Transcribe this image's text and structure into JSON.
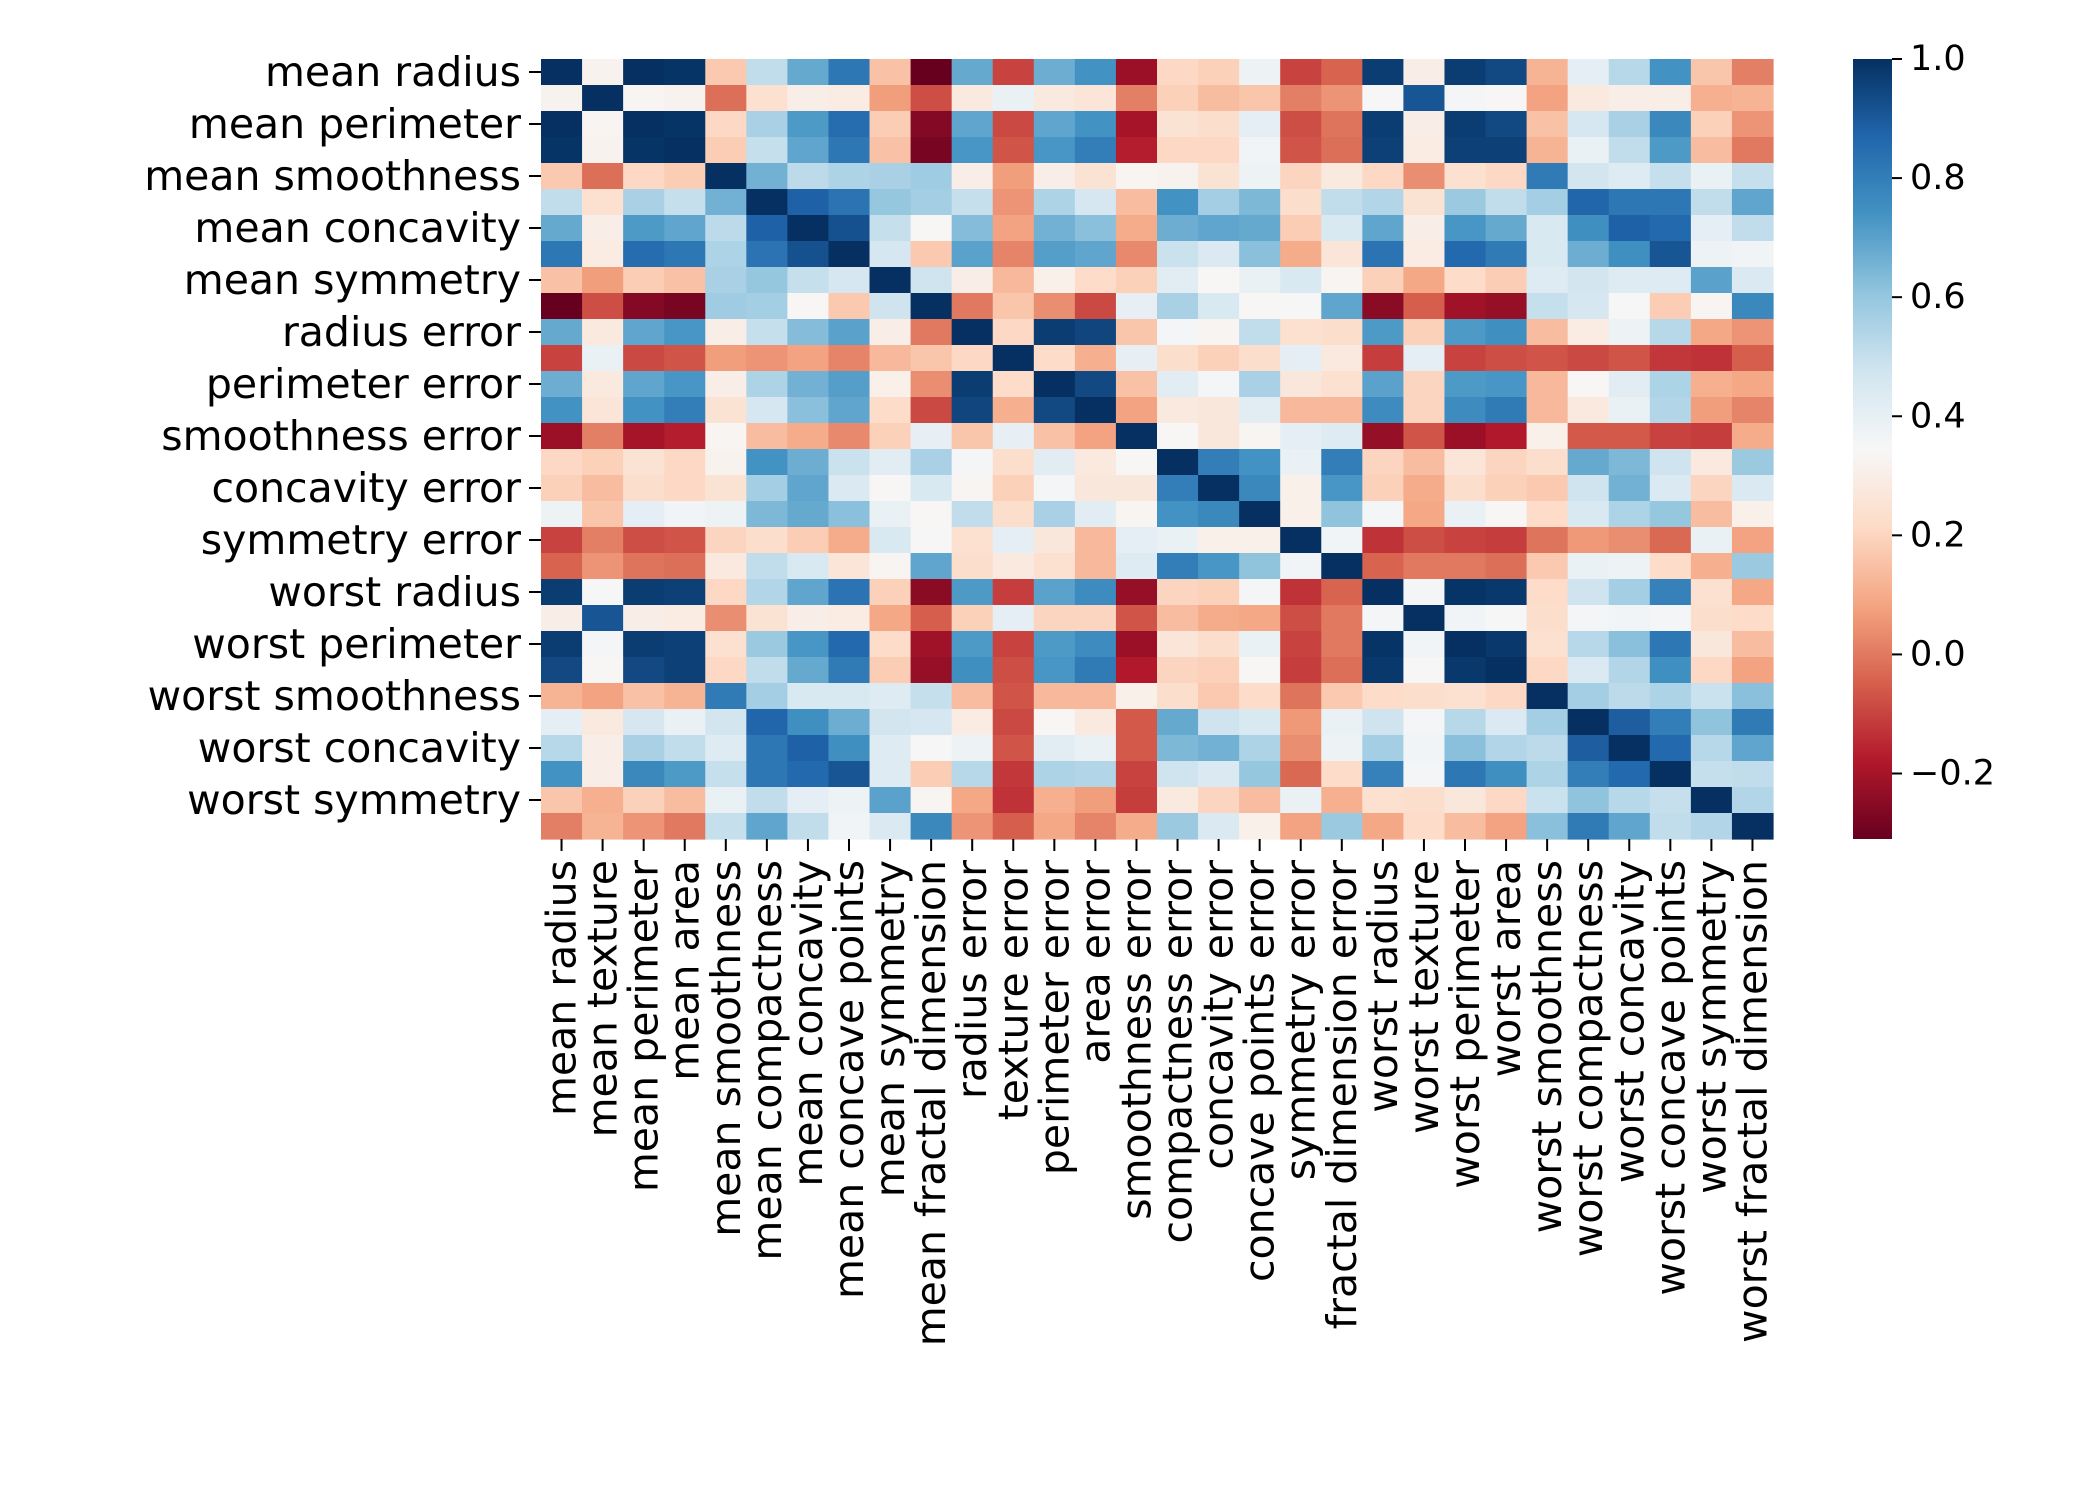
{
  "chart_data": {
    "type": "heatmap",
    "title": "",
    "xlabel": "",
    "ylabel": "",
    "labels": [
      "mean radius",
      "mean texture",
      "mean perimeter",
      "mean area",
      "mean smoothness",
      "mean compactness",
      "mean concavity",
      "mean concave points",
      "mean symmetry",
      "mean fractal dimension",
      "radius error",
      "texture error",
      "perimeter error",
      "area error",
      "smoothness error",
      "compactness error",
      "concavity error",
      "concave points error",
      "symmetry error",
      "fractal dimension error",
      "worst radius",
      "worst texture",
      "worst perimeter",
      "worst area",
      "worst smoothness",
      "worst compactness",
      "worst concavity",
      "worst concave points",
      "worst symmetry",
      "worst fractal dimension"
    ],
    "y_tick_labels_shown": [
      "mean radius",
      "mean perimeter",
      "mean smoothness",
      "mean concavity",
      "mean symmetry",
      "radius error",
      "perimeter error",
      "smoothness error",
      "concavity error",
      "symmetry error",
      "worst radius",
      "worst perimeter",
      "worst smoothness",
      "worst concavity",
      "worst symmetry"
    ],
    "colormap": "RdBu",
    "vmin": -0.31,
    "vmax": 1.0,
    "colorbar_ticks": [
      1.0,
      0.8,
      0.6,
      0.4,
      0.2,
      0.0,
      -0.2
    ],
    "colorbar_tick_labels": [
      "1.0",
      "0.8",
      "0.6",
      "0.4",
      "0.2",
      "0.0",
      "−0.2"
    ],
    "matrix": [
      [
        1.0,
        0.32,
        1.0,
        0.99,
        0.17,
        0.51,
        0.68,
        0.82,
        0.15,
        -0.31,
        0.68,
        -0.1,
        0.67,
        0.74,
        -0.22,
        0.21,
        0.19,
        0.38,
        -0.1,
        -0.04,
        0.97,
        0.3,
        0.97,
        0.94,
        0.12,
        0.41,
        0.53,
        0.74,
        0.16,
        0.01
      ],
      [
        0.32,
        1.0,
        0.33,
        0.32,
        -0.02,
        0.24,
        0.3,
        0.29,
        0.07,
        -0.08,
        0.28,
        0.39,
        0.28,
        0.26,
        0.01,
        0.19,
        0.14,
        0.16,
        0.01,
        0.05,
        0.35,
        0.91,
        0.36,
        0.34,
        0.08,
        0.28,
        0.3,
        0.3,
        0.11,
        0.12
      ],
      [
        1.0,
        0.33,
        1.0,
        0.99,
        0.21,
        0.56,
        0.72,
        0.85,
        0.18,
        -0.26,
        0.69,
        -0.09,
        0.69,
        0.74,
        -0.2,
        0.25,
        0.23,
        0.41,
        -0.08,
        -0.01,
        0.97,
        0.3,
        0.97,
        0.94,
        0.15,
        0.46,
        0.56,
        0.77,
        0.19,
        0.05
      ],
      [
        0.99,
        0.32,
        0.99,
        1.0,
        0.18,
        0.5,
        0.69,
        0.82,
        0.15,
        -0.28,
        0.73,
        -0.07,
        0.73,
        0.8,
        -0.17,
        0.21,
        0.21,
        0.37,
        -0.07,
        -0.02,
        0.96,
        0.29,
        0.96,
        0.96,
        0.12,
        0.39,
        0.51,
        0.72,
        0.14,
        0.0
      ],
      [
        0.17,
        -0.02,
        0.21,
        0.18,
        1.0,
        0.66,
        0.52,
        0.55,
        0.56,
        0.58,
        0.3,
        0.07,
        0.3,
        0.25,
        0.33,
        0.32,
        0.25,
        0.38,
        0.2,
        0.28,
        0.21,
        0.04,
        0.24,
        0.21,
        0.81,
        0.47,
        0.43,
        0.5,
        0.39,
        0.5
      ],
      [
        0.51,
        0.24,
        0.56,
        0.5,
        0.66,
        1.0,
        0.88,
        0.83,
        0.6,
        0.57,
        0.5,
        0.05,
        0.55,
        0.46,
        0.14,
        0.74,
        0.57,
        0.64,
        0.23,
        0.51,
        0.54,
        0.25,
        0.59,
        0.51,
        0.57,
        0.87,
        0.82,
        0.82,
        0.51,
        0.69
      ],
      [
        0.68,
        0.3,
        0.72,
        0.69,
        0.52,
        0.88,
        1.0,
        0.92,
        0.5,
        0.34,
        0.63,
        0.08,
        0.66,
        0.62,
        0.1,
        0.67,
        0.69,
        0.68,
        0.18,
        0.45,
        0.69,
        0.3,
        0.73,
        0.68,
        0.45,
        0.75,
        0.88,
        0.86,
        0.41,
        0.51
      ],
      [
        0.82,
        0.29,
        0.85,
        0.82,
        0.55,
        0.83,
        0.92,
        1.0,
        0.46,
        0.17,
        0.7,
        0.02,
        0.71,
        0.69,
        0.03,
        0.49,
        0.44,
        0.62,
        0.1,
        0.26,
        0.83,
        0.29,
        0.86,
        0.81,
        0.45,
        0.67,
        0.75,
        0.91,
        0.38,
        0.37
      ],
      [
        0.15,
        0.07,
        0.18,
        0.15,
        0.56,
        0.6,
        0.5,
        0.46,
        1.0,
        0.48,
        0.3,
        0.13,
        0.31,
        0.22,
        0.19,
        0.42,
        0.34,
        0.39,
        0.45,
        0.33,
        0.19,
        0.09,
        0.22,
        0.18,
        0.43,
        0.47,
        0.43,
        0.43,
        0.7,
        0.44
      ],
      [
        -0.31,
        -0.08,
        -0.26,
        -0.28,
        0.58,
        0.57,
        0.34,
        0.17,
        0.48,
        1.0,
        0.0,
        0.16,
        0.04,
        -0.09,
        0.4,
        0.56,
        0.45,
        0.34,
        0.35,
        0.69,
        -0.25,
        -0.05,
        -0.21,
        -0.23,
        0.5,
        0.46,
        0.35,
        0.18,
        0.33,
        0.77
      ],
      [
        0.68,
        0.28,
        0.69,
        0.73,
        0.3,
        0.5,
        0.63,
        0.7,
        0.3,
        0.0,
        1.0,
        0.21,
        0.97,
        0.95,
        0.16,
        0.36,
        0.33,
        0.51,
        0.24,
        0.23,
        0.72,
        0.19,
        0.72,
        0.75,
        0.14,
        0.29,
        0.38,
        0.53,
        0.09,
        0.05
      ],
      [
        -0.1,
        0.39,
        -0.09,
        -0.07,
        0.07,
        0.05,
        0.08,
        0.02,
        0.13,
        0.16,
        0.21,
        1.0,
        0.22,
        0.11,
        0.4,
        0.23,
        0.19,
        0.23,
        0.41,
        0.28,
        -0.11,
        0.41,
        -0.1,
        -0.08,
        -0.07,
        -0.09,
        -0.07,
        -0.12,
        -0.13,
        -0.05
      ],
      [
        0.67,
        0.28,
        0.69,
        0.73,
        0.3,
        0.55,
        0.66,
        0.71,
        0.31,
        0.04,
        0.97,
        0.22,
        1.0,
        0.94,
        0.15,
        0.42,
        0.36,
        0.56,
        0.27,
        0.24,
        0.7,
        0.2,
        0.72,
        0.73,
        0.13,
        0.34,
        0.42,
        0.55,
        0.11,
        0.09
      ],
      [
        0.74,
        0.26,
        0.74,
        0.8,
        0.25,
        0.46,
        0.62,
        0.69,
        0.22,
        -0.09,
        0.95,
        0.11,
        0.94,
        1.0,
        0.08,
        0.28,
        0.27,
        0.42,
        0.13,
        0.13,
        0.76,
        0.2,
        0.76,
        0.81,
        0.13,
        0.28,
        0.39,
        0.54,
        0.07,
        0.02
      ],
      [
        -0.22,
        0.01,
        -0.2,
        -0.17,
        0.33,
        0.14,
        0.1,
        0.03,
        0.19,
        0.4,
        0.16,
        0.4,
        0.15,
        0.08,
        1.0,
        0.34,
        0.27,
        0.33,
        0.41,
        0.43,
        -0.23,
        -0.07,
        -0.22,
        -0.18,
        0.31,
        -0.06,
        -0.06,
        -0.1,
        -0.11,
        0.1
      ],
      [
        0.21,
        0.19,
        0.25,
        0.21,
        0.32,
        0.74,
        0.67,
        0.49,
        0.42,
        0.56,
        0.36,
        0.23,
        0.42,
        0.28,
        0.34,
        1.0,
        0.8,
        0.74,
        0.39,
        0.8,
        0.2,
        0.14,
        0.26,
        0.2,
        0.23,
        0.68,
        0.64,
        0.48,
        0.28,
        0.59
      ],
      [
        0.19,
        0.14,
        0.23,
        0.21,
        0.25,
        0.57,
        0.69,
        0.44,
        0.34,
        0.45,
        0.33,
        0.19,
        0.36,
        0.27,
        0.27,
        0.8,
        1.0,
        0.77,
        0.31,
        0.73,
        0.19,
        0.1,
        0.23,
        0.19,
        0.17,
        0.48,
        0.66,
        0.44,
        0.2,
        0.44
      ],
      [
        0.38,
        0.16,
        0.41,
        0.37,
        0.38,
        0.64,
        0.68,
        0.62,
        0.39,
        0.34,
        0.51,
        0.23,
        0.56,
        0.42,
        0.33,
        0.74,
        0.77,
        1.0,
        0.31,
        0.61,
        0.36,
        0.09,
        0.39,
        0.34,
        0.22,
        0.45,
        0.55,
        0.6,
        0.14,
        0.31
      ],
      [
        -0.1,
        0.01,
        -0.08,
        -0.07,
        0.2,
        0.23,
        0.18,
        0.1,
        0.45,
        0.35,
        0.24,
        0.41,
        0.27,
        0.13,
        0.41,
        0.39,
        0.31,
        0.31,
        1.0,
        0.37,
        -0.13,
        -0.08,
        -0.1,
        -0.11,
        -0.01,
        0.06,
        0.04,
        -0.03,
        0.39,
        0.08
      ],
      [
        -0.04,
        0.05,
        -0.01,
        -0.02,
        0.28,
        0.51,
        0.45,
        0.26,
        0.33,
        0.69,
        0.23,
        0.28,
        0.24,
        0.13,
        0.43,
        0.8,
        0.73,
        0.61,
        0.37,
        1.0,
        -0.04,
        -0.0,
        -0.0,
        -0.02,
        0.17,
        0.39,
        0.38,
        0.22,
        0.11,
        0.59
      ],
      [
        0.97,
        0.35,
        0.97,
        0.96,
        0.21,
        0.54,
        0.69,
        0.83,
        0.19,
        -0.25,
        0.72,
        -0.11,
        0.7,
        0.76,
        -0.23,
        0.2,
        0.19,
        0.36,
        -0.13,
        -0.04,
        1.0,
        0.36,
        0.99,
        0.98,
        0.22,
        0.48,
        0.57,
        0.79,
        0.24,
        0.09
      ],
      [
        0.3,
        0.91,
        0.3,
        0.29,
        0.04,
        0.25,
        0.3,
        0.29,
        0.09,
        -0.05,
        0.19,
        0.41,
        0.2,
        0.2,
        -0.07,
        0.14,
        0.1,
        0.09,
        -0.08,
        -0.0,
        0.36,
        1.0,
        0.37,
        0.35,
        0.23,
        0.36,
        0.37,
        0.36,
        0.23,
        0.22
      ],
      [
        0.97,
        0.36,
        0.97,
        0.96,
        0.24,
        0.59,
        0.73,
        0.86,
        0.22,
        -0.21,
        0.72,
        -0.1,
        0.72,
        0.76,
        -0.22,
        0.26,
        0.23,
        0.39,
        -0.1,
        -0.0,
        0.99,
        0.37,
        1.0,
        0.98,
        0.24,
        0.53,
        0.62,
        0.82,
        0.27,
        0.14
      ],
      [
        0.94,
        0.34,
        0.94,
        0.96,
        0.21,
        0.51,
        0.68,
        0.81,
        0.18,
        -0.23,
        0.75,
        -0.08,
        0.73,
        0.81,
        -0.18,
        0.2,
        0.19,
        0.34,
        -0.11,
        -0.02,
        0.98,
        0.35,
        0.98,
        1.0,
        0.21,
        0.44,
        0.54,
        0.75,
        0.21,
        0.08
      ],
      [
        0.12,
        0.08,
        0.15,
        0.12,
        0.81,
        0.57,
        0.45,
        0.45,
        0.43,
        0.5,
        0.14,
        -0.07,
        0.13,
        0.13,
        0.31,
        0.23,
        0.17,
        0.22,
        -0.01,
        0.17,
        0.22,
        0.23,
        0.24,
        0.21,
        1.0,
        0.57,
        0.52,
        0.55,
        0.49,
        0.62
      ],
      [
        0.41,
        0.28,
        0.46,
        0.39,
        0.47,
        0.87,
        0.75,
        0.67,
        0.47,
        0.46,
        0.29,
        -0.09,
        0.34,
        0.28,
        -0.06,
        0.68,
        0.48,
        0.45,
        0.06,
        0.39,
        0.48,
        0.36,
        0.53,
        0.44,
        0.57,
        1.0,
        0.89,
        0.8,
        0.61,
        0.81
      ],
      [
        0.53,
        0.3,
        0.56,
        0.51,
        0.43,
        0.82,
        0.88,
        0.75,
        0.43,
        0.35,
        0.38,
        -0.07,
        0.42,
        0.39,
        -0.06,
        0.64,
        0.66,
        0.55,
        0.04,
        0.38,
        0.57,
        0.37,
        0.62,
        0.54,
        0.52,
        0.89,
        1.0,
        0.86,
        0.53,
        0.69
      ],
      [
        0.74,
        0.3,
        0.77,
        0.72,
        0.5,
        0.82,
        0.86,
        0.91,
        0.43,
        0.18,
        0.53,
        -0.12,
        0.55,
        0.54,
        -0.1,
        0.48,
        0.44,
        0.6,
        -0.03,
        0.22,
        0.79,
        0.36,
        0.82,
        0.75,
        0.55,
        0.8,
        0.86,
        1.0,
        0.5,
        0.51
      ],
      [
        0.16,
        0.11,
        0.19,
        0.14,
        0.39,
        0.51,
        0.41,
        0.38,
        0.7,
        0.33,
        0.09,
        -0.13,
        0.11,
        0.07,
        -0.11,
        0.28,
        0.2,
        0.14,
        0.39,
        0.11,
        0.24,
        0.23,
        0.27,
        0.21,
        0.49,
        0.61,
        0.53,
        0.5,
        1.0,
        0.54
      ],
      [
        0.01,
        0.12,
        0.05,
        0.0,
        0.5,
        0.69,
        0.51,
        0.37,
        0.44,
        0.77,
        0.05,
        -0.05,
        0.09,
        0.02,
        0.1,
        0.59,
        0.44,
        0.31,
        0.08,
        0.59,
        0.09,
        0.22,
        0.14,
        0.08,
        0.62,
        0.81,
        0.69,
        0.51,
        0.54,
        1.0
      ]
    ]
  }
}
